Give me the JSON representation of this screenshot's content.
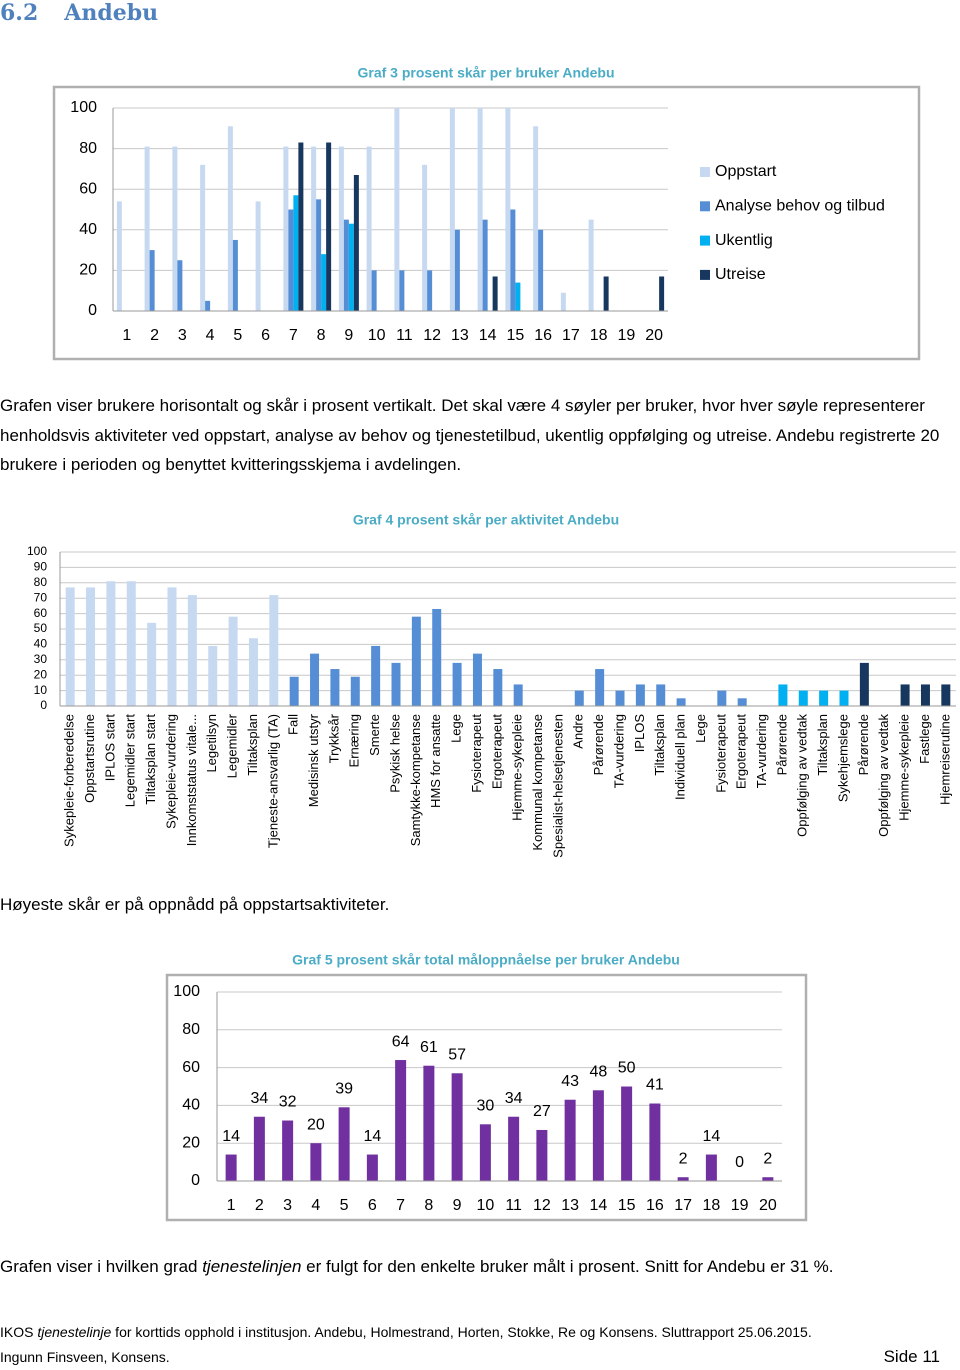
{
  "heading": {
    "number": "6.2",
    "title": "Andebu"
  },
  "chart_data": [
    {
      "type": "bar",
      "title": "Graf 3 prosent skår per bruker Andebu",
      "categories": [
        "1",
        "2",
        "3",
        "4",
        "5",
        "6",
        "7",
        "8",
        "9",
        "10",
        "11",
        "12",
        "13",
        "14",
        "15",
        "16",
        "17",
        "18",
        "19",
        "20"
      ],
      "series": [
        {
          "name": "Oppstart",
          "color": "#c6d9f1",
          "values": [
            54,
            81,
            81,
            72,
            91,
            54,
            81,
            81,
            81,
            81,
            100,
            72,
            100,
            100,
            100,
            91,
            9,
            45,
            0,
            0
          ]
        },
        {
          "name": "Analyse behov og tilbud",
          "color": "#558ed5",
          "values": [
            0,
            30,
            25,
            5,
            35,
            0,
            50,
            55,
            45,
            20,
            20,
            20,
            40,
            45,
            50,
            40,
            0,
            0,
            0,
            0
          ]
        },
        {
          "name": "Ukentlig",
          "color": "#00b0f0",
          "values": [
            0,
            0,
            0,
            0,
            0,
            0,
            57,
            28,
            43,
            0,
            0,
            0,
            0,
            0,
            14,
            0,
            0,
            0,
            0,
            0
          ]
        },
        {
          "name": "Utreise",
          "color": "#17375e",
          "values": [
            0,
            0,
            0,
            0,
            0,
            0,
            83,
            83,
            67,
            0,
            0,
            0,
            0,
            17,
            0,
            0,
            0,
            17,
            0,
            17
          ]
        }
      ],
      "ylim": [
        0,
        100
      ],
      "yticks": [
        0,
        20,
        40,
        60,
        80,
        100
      ],
      "grid": true,
      "legend": "right"
    },
    {
      "type": "bar",
      "title": "Graf 4 prosent skår per aktivitet Andebu",
      "categories": [
        "Sykepleie-forberedelse",
        "Oppstartsrutine",
        "IPLOS start",
        "Legemidler start",
        "Tiltaksplan start",
        "Sykepleie-vurdering",
        "Innkomststatus vitale...",
        "Legetilsyn",
        "Legemidler",
        "Tiltaksplan",
        "Tjeneste-ansvarlig (TA)",
        "Fall",
        "Medisinsk utstyr",
        "Trykksår",
        "Ernæring",
        "Smerte",
        "Psykisk helse",
        "Samtykke-kompetanse",
        "HMS for ansatte",
        "Lege",
        "Fysioterapeut",
        "Ergoterapeut",
        "Hjemme-sykepleie",
        "Kommunal kompetanse",
        "Spesialist-helsetjenesten",
        "Andre",
        "Pårørende",
        "TA-vurdering",
        "IPLOS",
        "Tiltaksplan",
        "Individuell plan",
        "Lege",
        "Fysioterapeut",
        "Ergoterapeut",
        "TA-vurdering",
        "Pårørende",
        "Oppfølging av vedtak",
        "Tiltaksplan",
        "Sykehjemslege",
        "Pårørende",
        "Oppfølging av vedtak",
        "Hjemme-sykepleie",
        "Fastlege",
        "Hjemreiserutine"
      ],
      "values": [
        77,
        77,
        81,
        81,
        54,
        77,
        72,
        39,
        58,
        44,
        72,
        19,
        34,
        24,
        19,
        39,
        28,
        58,
        63,
        28,
        34,
        24,
        14,
        0,
        0,
        10,
        24,
        10,
        14,
        14,
        5,
        0,
        10,
        5,
        0,
        14,
        10,
        10,
        10,
        28,
        0,
        14,
        14,
        14
      ],
      "colors": [
        "#c6d9f1",
        "#c6d9f1",
        "#c6d9f1",
        "#c6d9f1",
        "#c6d9f1",
        "#c6d9f1",
        "#c6d9f1",
        "#c6d9f1",
        "#c6d9f1",
        "#c6d9f1",
        "#c6d9f1",
        "#558ed5",
        "#558ed5",
        "#558ed5",
        "#558ed5",
        "#558ed5",
        "#558ed5",
        "#558ed5",
        "#558ed5",
        "#558ed5",
        "#558ed5",
        "#558ed5",
        "#558ed5",
        "#558ed5",
        "#558ed5",
        "#558ed5",
        "#558ed5",
        "#558ed5",
        "#558ed5",
        "#558ed5",
        "#558ed5",
        "#558ed5",
        "#558ed5",
        "#558ed5",
        "#558ed5",
        "#00b0f0",
        "#00b0f0",
        "#00b0f0",
        "#00b0f0",
        "#17375e",
        "#17375e",
        "#17375e",
        "#17375e",
        "#17375e"
      ],
      "ylim": [
        0,
        100
      ],
      "yticks": [
        0,
        10,
        20,
        30,
        40,
        50,
        60,
        70,
        80,
        90,
        100
      ],
      "grid": true
    },
    {
      "type": "bar",
      "title": "Graf 5 prosent skår total måloppnåelse per bruker Andebu",
      "categories": [
        "1",
        "2",
        "3",
        "4",
        "5",
        "6",
        "7",
        "8",
        "9",
        "10",
        "11",
        "12",
        "13",
        "14",
        "15",
        "16",
        "17",
        "18",
        "19",
        "20"
      ],
      "values": [
        14,
        34,
        32,
        20,
        39,
        14,
        64,
        61,
        57,
        30,
        34,
        27,
        43,
        48,
        50,
        41,
        2,
        14,
        0,
        2
      ],
      "color": "#7030a0",
      "value_labels_shown": true,
      "ylim": [
        0,
        100
      ],
      "yticks": [
        0,
        20,
        40,
        60,
        80,
        100
      ],
      "grid": true
    }
  ],
  "paragraph_1": "Grafen viser brukere horisontalt og skår i prosent vertikalt. Det skal være 4 søyler per bruker, hvor hver søyle representerer henholdsvis aktiviteter ved oppstart, analyse av behov og tjenestetilbud, ukentlig oppfølging og utreise. Andebu registrerte 20 brukere i perioden og benyttet kvitteringsskjema i avdelingen.",
  "paragraph_2": "Høyeste skår er på oppnådd på oppstartsaktiviteter.",
  "paragraph_3": [
    "Grafen viser i hvilken grad ",
    "tjenestelinjen",
    " er fulgt for den enkelte bruker målt i prosent.  Snitt for Andebu er 31 %."
  ],
  "footer": {
    "line_1": [
      "IKOS ",
      "tjenestelinje",
      " for korttids opphold i institusjon. Andebu, Holmestrand, Horten, Stokke, Re og Konsens. Sluttrapport 25.06.2015."
    ],
    "line_2": "Ingunn Finsveen, Konsens.",
    "page": "Side 11"
  }
}
